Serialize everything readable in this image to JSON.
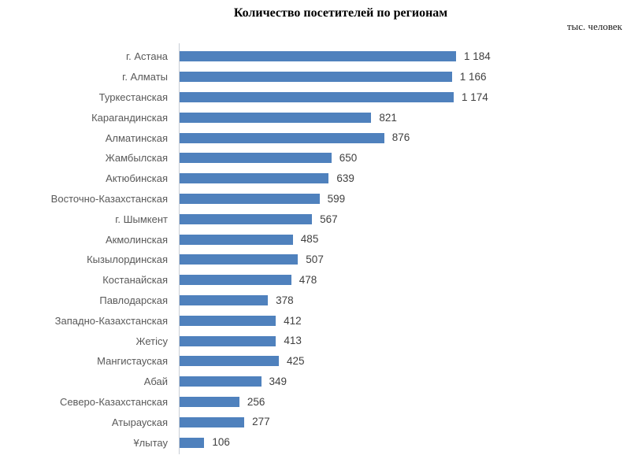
{
  "chart": {
    "title": "Количество посетителей по регионам",
    "unit_label": "тыс. человек"
  },
  "chart_data": {
    "type": "bar",
    "orientation": "horizontal",
    "title": "Количество посетителей по регионам",
    "unit": "тыс. человек",
    "xlabel": "",
    "ylabel": "",
    "xlim": [
      0,
      1184
    ],
    "grid": false,
    "legend": false,
    "data_labels": true,
    "categories": [
      "г. Астана",
      "г. Алматы",
      "Туркестанская",
      "Карагандинская",
      "Алматинская",
      "Жамбылская",
      "Актюбинская",
      "Восточно-Казахстанская",
      "г. Шымкент",
      "Акмолинская",
      "Кызылординская",
      "Костанайская",
      "Павлодарская",
      "Западно-Казахстанская",
      "Жетісу",
      "Мангистауская",
      "Абай",
      "Северо-Казахстанская",
      "Атырауская",
      "Ұлытау"
    ],
    "values": [
      1184,
      1166,
      1174,
      821,
      876,
      650,
      639,
      599,
      567,
      485,
      507,
      478,
      378,
      412,
      413,
      425,
      349,
      256,
      277,
      106
    ],
    "value_labels": [
      "1 184",
      "1 166",
      "1 174",
      "821",
      "876",
      "650",
      "639",
      "599",
      "567",
      "485",
      "507",
      "478",
      "378",
      "412",
      "413",
      "425",
      "349",
      "256",
      "277",
      "106"
    ],
    "colors": {
      "bar": "#4F81BD",
      "axis_line": "#C8CDD5",
      "category_label": "#595959",
      "value_label": "#404040",
      "title": "#000000",
      "background": "#FFFFFF"
    }
  }
}
